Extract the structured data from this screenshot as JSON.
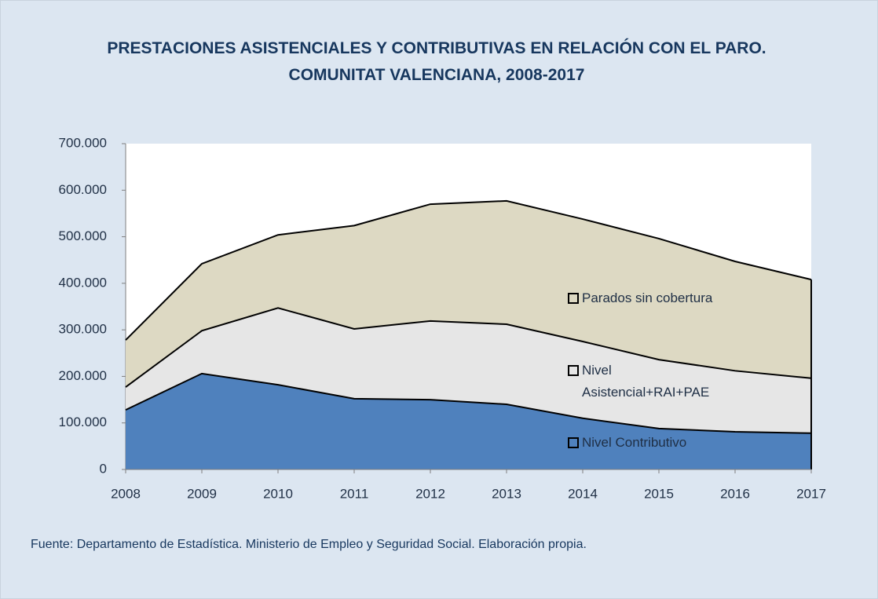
{
  "chart_data": {
    "type": "stacked_area",
    "title": "PRESTACIONES ASISTENCIALES Y CONTRIBUTIVAS EN RELACIÓN CON EL PARO. COMUNITAT VALENCIANA, 2008-2017",
    "source": "Fuente: Departamento de Estadística. Ministerio de Empleo y Seguridad Social. Elaboración propia.",
    "categories": [
      "2008",
      "2009",
      "2010",
      "2011",
      "2012",
      "2013",
      "2014",
      "2015",
      "2016",
      "2017"
    ],
    "series": [
      {
        "name": "Nivel Contributivo",
        "color": "#4f81bd",
        "values": [
          128000,
          206000,
          182000,
          152000,
          150000,
          140000,
          110000,
          88000,
          81000,
          78000
        ]
      },
      {
        "name": "Nivel Asistencial+RAI+PAE",
        "color": "#e6e6e6",
        "values": [
          49000,
          92000,
          165000,
          150000,
          169000,
          172000,
          165000,
          148000,
          131000,
          118000
        ]
      },
      {
        "name": "Parados sin cobertura",
        "color": "#ddd9c3",
        "values": [
          101000,
          144000,
          157000,
          222000,
          251000,
          265000,
          263000,
          260000,
          235000,
          212000
        ]
      }
    ],
    "ylim": [
      0,
      700000
    ],
    "yticks": [
      0,
      {
        "value": 100000,
        "label": "100.000"
      },
      {
        "value": 200000,
        "label": "200.000"
      },
      {
        "value": 300000,
        "label": "300.000"
      },
      {
        "value": 400000,
        "label": "400.000"
      },
      {
        "value": 500000,
        "label": "500.000"
      },
      {
        "value": 600000,
        "label": "600.000"
      },
      {
        "value": 700000,
        "label": "700.000"
      }
    ]
  }
}
